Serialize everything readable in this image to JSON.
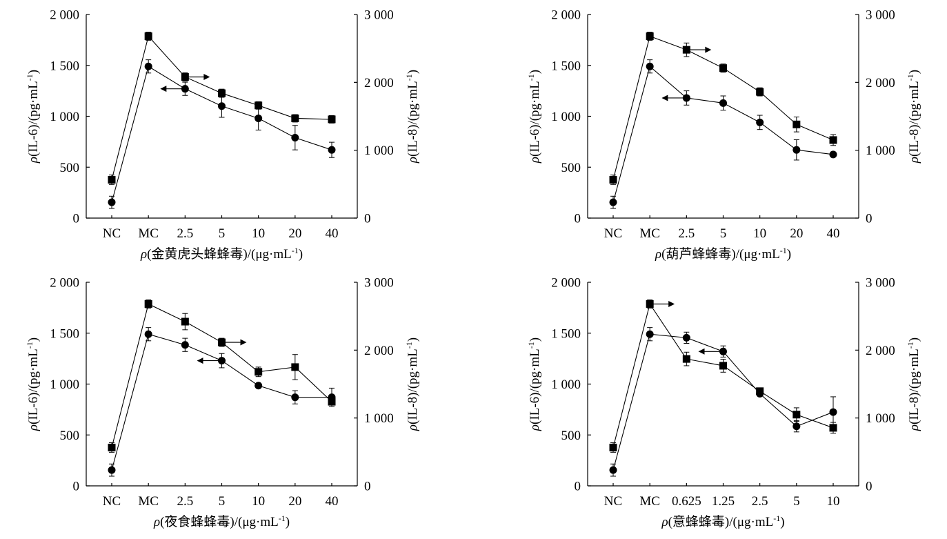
{
  "chart_data": [
    {
      "type": "line",
      "categories": [
        "NC",
        "MC",
        "2.5",
        "5",
        "10",
        "20",
        "40"
      ],
      "xlabel": "ρ(金黄虎头蜂蜂毒)/(μg·mL-1)",
      "y_left": {
        "label": "ρ(IL-6)/(pg·mL-1)",
        "range": [
          0,
          2000
        ],
        "ticks": [
          0,
          500,
          1000,
          1500,
          2000
        ],
        "tick_labels": [
          "0",
          "500",
          "1 000",
          "1 500",
          "2 000"
        ]
      },
      "y_right": {
        "label": "ρ(IL-8)/(pg·mL-1)",
        "range": [
          0,
          3000
        ],
        "ticks": [
          0,
          1000,
          2000,
          3000
        ],
        "tick_labels": [
          "0",
          "1 000",
          "2 000",
          "3 000"
        ]
      },
      "grid": false,
      "series": [
        {
          "axis": "left",
          "marker": "circle",
          "color": "#000000",
          "values": [
            155,
            1490,
            1270,
            1100,
            980,
            790,
            670
          ],
          "errors": [
            60,
            65,
            65,
            110,
            115,
            120,
            75
          ],
          "arrow": {
            "at_index": 2,
            "direction": "left"
          }
        },
        {
          "axis": "right",
          "marker": "square",
          "color": "#000000",
          "values": [
            565,
            2680,
            2080,
            1840,
            1660,
            1470,
            1455
          ],
          "errors": [
            70,
            60,
            60,
            60,
            55,
            55,
            55
          ],
          "arrow": {
            "at_index": 2,
            "direction": "right"
          }
        }
      ]
    },
    {
      "type": "line",
      "categories": [
        "NC",
        "MC",
        "2.5",
        "5",
        "10",
        "20",
        "40"
      ],
      "xlabel": "ρ(葫芦蜂蜂毒)/(μg·mL-1)",
      "y_left": {
        "label": "ρ(IL-6)/(pg·mL-1)",
        "range": [
          0,
          2000
        ],
        "ticks": [
          0,
          500,
          1000,
          1500,
          2000
        ],
        "tick_labels": [
          "0",
          "500",
          "1 000",
          "1 500",
          "2 000"
        ]
      },
      "y_right": {
        "label": "ρ(IL-8)/(pg·mL-1)",
        "range": [
          0,
          3000
        ],
        "ticks": [
          0,
          1000,
          2000,
          3000
        ],
        "tick_labels": [
          "0",
          "1 000",
          "2 000",
          "3 000"
        ]
      },
      "grid": false,
      "series": [
        {
          "axis": "left",
          "marker": "circle",
          "color": "#000000",
          "values": [
            155,
            1490,
            1180,
            1130,
            940,
            670,
            625
          ],
          "errors": [
            60,
            65,
            70,
            70,
            70,
            100,
            10
          ],
          "arrow": {
            "at_index": 2,
            "direction": "left"
          }
        },
        {
          "axis": "right",
          "marker": "square",
          "color": "#000000",
          "values": [
            565,
            2680,
            2480,
            2210,
            1860,
            1380,
            1150
          ],
          "errors": [
            70,
            60,
            100,
            60,
            60,
            110,
            80
          ],
          "arrow": {
            "at_index": 2,
            "direction": "right"
          }
        }
      ]
    },
    {
      "type": "line",
      "categories": [
        "NC",
        "MC",
        "2.5",
        "5",
        "10",
        "20",
        "40"
      ],
      "xlabel": "ρ(夜食蜂蜂毒)/(μg·mL-1)",
      "y_left": {
        "label": "ρ(IL-6)/(pg·mL-1)",
        "range": [
          0,
          2000
        ],
        "ticks": [
          0,
          500,
          1000,
          1500,
          2000
        ],
        "tick_labels": [
          "0",
          "500",
          "1 000",
          "1 500",
          "2 000"
        ]
      },
      "y_right": {
        "label": "ρ(IL-8)/(pg·mL-1)",
        "range": [
          0,
          3000
        ],
        "ticks": [
          0,
          1000,
          2000,
          3000
        ],
        "tick_labels": [
          "0",
          "1 000",
          "2 000",
          "3 000"
        ]
      },
      "grid": false,
      "series": [
        {
          "axis": "left",
          "marker": "circle",
          "color": "#000000",
          "values": [
            155,
            1490,
            1385,
            1230,
            985,
            870,
            870
          ],
          "errors": [
            60,
            65,
            65,
            70,
            15,
            65,
            90
          ],
          "arrow": {
            "at_index": 3,
            "direction": "left"
          }
        },
        {
          "axis": "right",
          "marker": "square",
          "color": "#000000",
          "values": [
            565,
            2680,
            2420,
            2115,
            1680,
            1750,
            1240
          ],
          "errors": [
            70,
            60,
            120,
            60,
            70,
            185,
            50
          ],
          "arrow": {
            "at_index": 3,
            "direction": "right"
          }
        }
      ]
    },
    {
      "type": "line",
      "categories": [
        "NC",
        "MC",
        "0.625",
        "1.25",
        "2.5",
        "5",
        "10"
      ],
      "xlabel": "ρ(意蜂蜂毒)/(μg·mL-1)",
      "y_left": {
        "label": "ρ(IL-6)/(pg·mL-1)",
        "range": [
          0,
          2000
        ],
        "ticks": [
          0,
          500,
          1000,
          1500,
          2000
        ],
        "tick_labels": [
          "0",
          "500",
          "1 000",
          "1 500",
          "2 000"
        ]
      },
      "y_right": {
        "label": "ρ(IL-8)/(pg·mL-1)",
        "range": [
          0,
          3000
        ],
        "ticks": [
          0,
          1000,
          2000,
          3000
        ],
        "tick_labels": [
          "0",
          "1 000",
          "2 000",
          "3 000"
        ]
      },
      "grid": false,
      "series": [
        {
          "axis": "left",
          "marker": "circle",
          "color": "#000000",
          "values": [
            155,
            1490,
            1455,
            1320,
            905,
            585,
            725
          ],
          "errors": [
            60,
            65,
            55,
            55,
            20,
            55,
            150
          ],
          "arrow": {
            "at_index": 3,
            "direction": "left"
          }
        },
        {
          "axis": "right",
          "marker": "square",
          "color": "#000000",
          "values": [
            565,
            2680,
            1870,
            1770,
            1395,
            1050,
            855
          ],
          "errors": [
            70,
            60,
            100,
            95,
            20,
            100,
            80
          ],
          "arrow": {
            "at_index": 1,
            "direction": "right"
          }
        }
      ]
    }
  ]
}
